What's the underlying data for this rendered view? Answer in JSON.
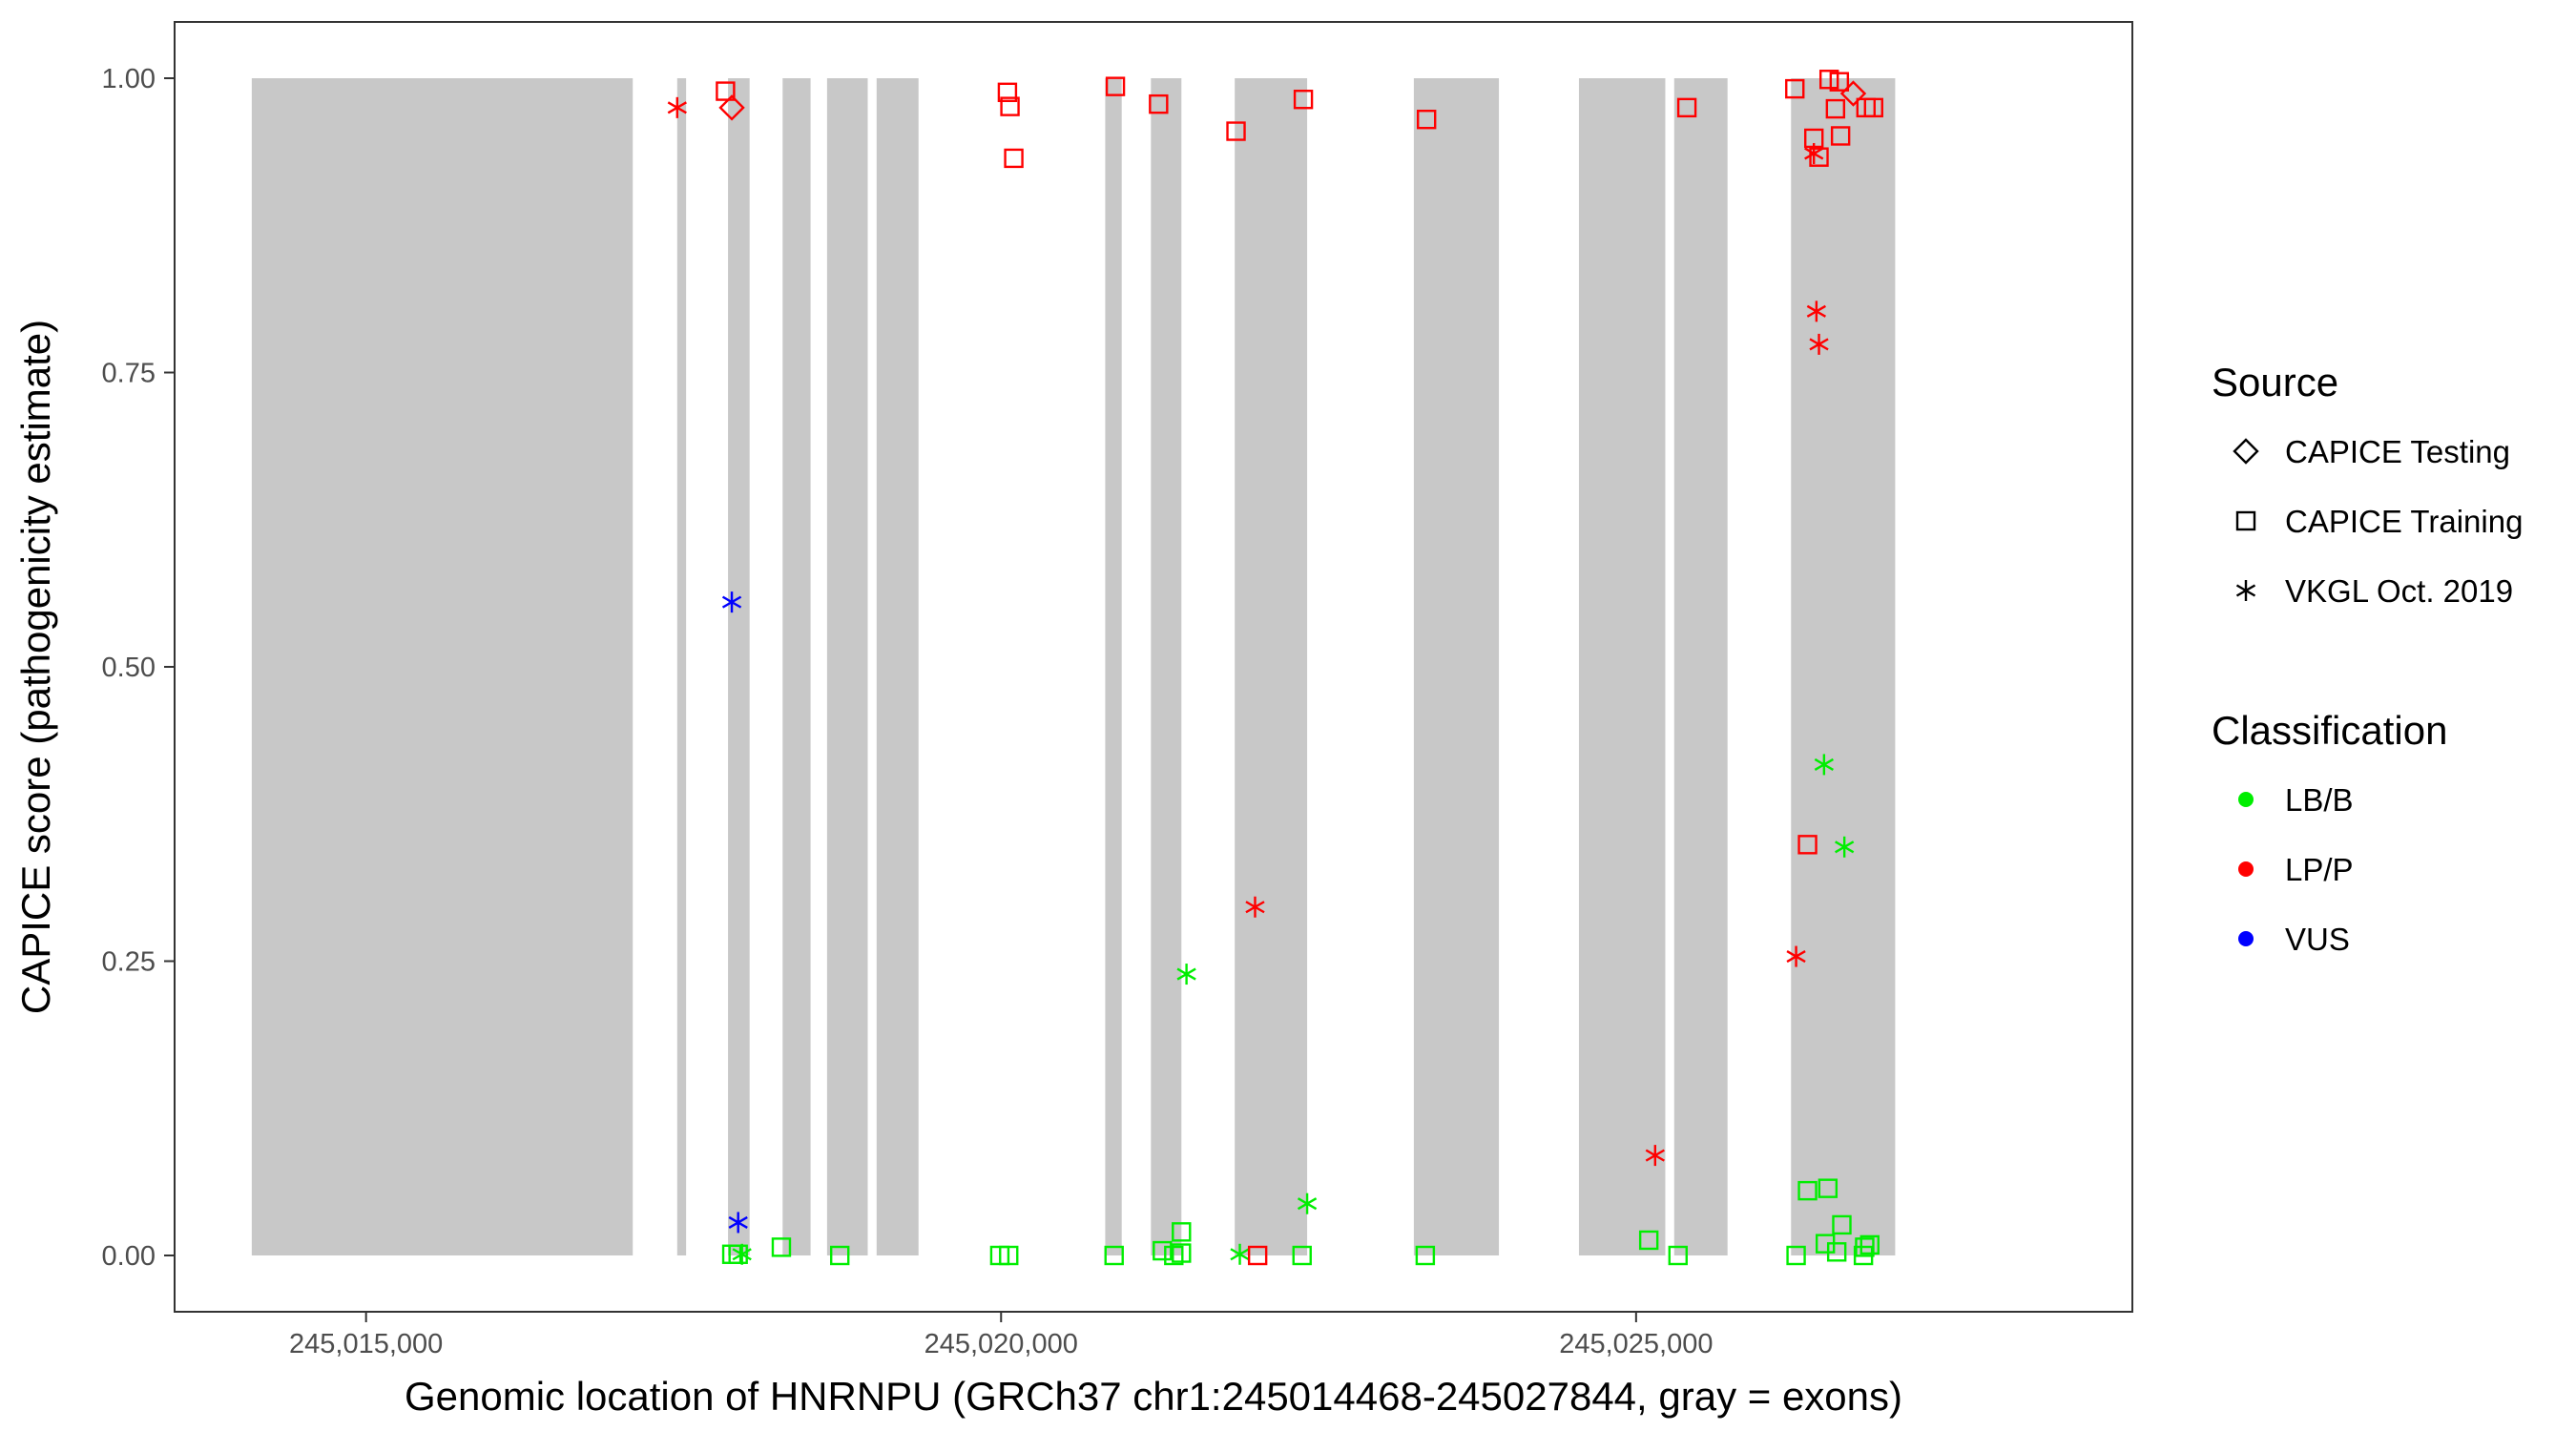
{
  "chart_data": {
    "type": "scatter",
    "xlabel": "Genomic location of HNRNPU (GRCh37 chr1:245014468-245027844, gray = exons)",
    "ylabel": "CAPICE score (pathogenicity estimate)",
    "xlim": [
      245013500,
      245028900
    ],
    "ylim": [
      -0.047,
      1.047
    ],
    "x_ticks": [
      {
        "value": 245015000,
        "label": "245,015,000"
      },
      {
        "value": 245020000,
        "label": "245,020,000"
      },
      {
        "value": 245025000,
        "label": "245,025,000"
      }
    ],
    "y_ticks": [
      {
        "value": 0,
        "label": "0.00"
      },
      {
        "value": 0.25,
        "label": "0.25"
      },
      {
        "value": 0.5,
        "label": "0.50"
      },
      {
        "value": 0.75,
        "label": "0.75"
      },
      {
        "value": 1,
        "label": "1.00"
      }
    ],
    "exons": [
      [
        245014100,
        245017100
      ],
      [
        245017450,
        245017520
      ],
      [
        245017850,
        245018020
      ],
      [
        245018280,
        245018500
      ],
      [
        245018630,
        245018950
      ],
      [
        245019020,
        245019350
      ],
      [
        245020820,
        245020950
      ],
      [
        245021180,
        245021420
      ],
      [
        245021840,
        245022410
      ],
      [
        245023250,
        245023920
      ],
      [
        245024550,
        245025230
      ],
      [
        245025300,
        245025720
      ],
      [
        245026220,
        245027040
      ]
    ],
    "exon_color": "#c8c8c8",
    "grid": false,
    "legend_position": "right",
    "colors": {
      "LB/B": "#00ee00",
      "LP/P": "#ff0000",
      "VUS": "#0000ff"
    },
    "legends": [
      {
        "title": "Source",
        "entries": [
          {
            "label": "CAPICE Testing",
            "shape": "diamond"
          },
          {
            "label": "CAPICE Training",
            "shape": "square"
          },
          {
            "label": "VKGL Oct. 2019",
            "shape": "asterisk"
          }
        ]
      },
      {
        "title": "Classification",
        "entries": [
          {
            "label": "LB/B",
            "color": "#00ee00"
          },
          {
            "label": "LP/P",
            "color": "#ff0000"
          },
          {
            "label": "VUS",
            "color": "#0000ff"
          }
        ]
      }
    ],
    "points": [
      {
        "x": 245017450,
        "y": 0.975,
        "shape": "asterisk",
        "class": "LP/P"
      },
      {
        "x": 245017830,
        "y": 0.989,
        "shape": "square",
        "class": "LP/P"
      },
      {
        "x": 245017880,
        "y": 0.975,
        "shape": "diamond",
        "class": "LP/P"
      },
      {
        "x": 245020050,
        "y": 0.988,
        "shape": "square",
        "class": "LP/P"
      },
      {
        "x": 245020070,
        "y": 0.976,
        "shape": "square",
        "class": "LP/P"
      },
      {
        "x": 245020100,
        "y": 0.932,
        "shape": "square",
        "class": "LP/P"
      },
      {
        "x": 245020900,
        "y": 0.993,
        "shape": "square",
        "class": "LP/P"
      },
      {
        "x": 245021240,
        "y": 0.978,
        "shape": "square",
        "class": "LP/P"
      },
      {
        "x": 245021850,
        "y": 0.955,
        "shape": "square",
        "class": "LP/P"
      },
      {
        "x": 245022380,
        "y": 0.982,
        "shape": "square",
        "class": "LP/P"
      },
      {
        "x": 245023350,
        "y": 0.965,
        "shape": "square",
        "class": "LP/P"
      },
      {
        "x": 245025400,
        "y": 0.975,
        "shape": "square",
        "class": "LP/P"
      },
      {
        "x": 245026250,
        "y": 0.991,
        "shape": "square",
        "class": "LP/P"
      },
      {
        "x": 245026400,
        "y": 0.949,
        "shape": "square",
        "class": "LP/P"
      },
      {
        "x": 245026440,
        "y": 0.933,
        "shape": "square",
        "class": "LP/P"
      },
      {
        "x": 245026520,
        "y": 0.999,
        "shape": "square",
        "class": "LP/P"
      },
      {
        "x": 245026570,
        "y": 0.974,
        "shape": "square",
        "class": "LP/P"
      },
      {
        "x": 245026600,
        "y": 0.997,
        "shape": "square",
        "class": "LP/P"
      },
      {
        "x": 245026610,
        "y": 0.951,
        "shape": "square",
        "class": "LP/P"
      },
      {
        "x": 245026710,
        "y": 0.987,
        "shape": "diamond",
        "class": "LP/P"
      },
      {
        "x": 245026810,
        "y": 0.975,
        "shape": "square",
        "class": "LP/P"
      },
      {
        "x": 245026870,
        "y": 0.975,
        "shape": "square",
        "class": "LP/P"
      },
      {
        "x": 245026400,
        "y": 0.936,
        "shape": "asterisk",
        "class": "LP/P"
      },
      {
        "x": 245026420,
        "y": 0.802,
        "shape": "asterisk",
        "class": "LP/P"
      },
      {
        "x": 245026440,
        "y": 0.774,
        "shape": "asterisk",
        "class": "LP/P"
      },
      {
        "x": 245017880,
        "y": 0.555,
        "shape": "asterisk",
        "class": "VUS"
      },
      {
        "x": 245017930,
        "y": 0.028,
        "shape": "asterisk",
        "class": "VUS"
      },
      {
        "x": 245026480,
        "y": 0.417,
        "shape": "asterisk",
        "class": "LB/B"
      },
      {
        "x": 245026640,
        "y": 0.347,
        "shape": "asterisk",
        "class": "LB/B"
      },
      {
        "x": 245026350,
        "y": 0.349,
        "shape": "square",
        "class": "LP/P"
      },
      {
        "x": 245022000,
        "y": 0.296,
        "shape": "asterisk",
        "class": "LP/P"
      },
      {
        "x": 245026260,
        "y": 0.254,
        "shape": "asterisk",
        "class": "LP/P"
      },
      {
        "x": 245021460,
        "y": 0.239,
        "shape": "asterisk",
        "class": "LB/B"
      },
      {
        "x": 245025150,
        "y": 0.085,
        "shape": "asterisk",
        "class": "LP/P"
      },
      {
        "x": 245022410,
        "y": 0.044,
        "shape": "asterisk",
        "class": "LB/B"
      },
      {
        "x": 245025100,
        "y": 0.013,
        "shape": "square",
        "class": "LB/B"
      },
      {
        "x": 245026350,
        "y": 0.055,
        "shape": "square",
        "class": "LB/B"
      },
      {
        "x": 245026510,
        "y": 0.057,
        "shape": "square",
        "class": "LB/B"
      },
      {
        "x": 245026620,
        "y": 0.026,
        "shape": "square",
        "class": "LB/B"
      },
      {
        "x": 245021420,
        "y": 0.02,
        "shape": "square",
        "class": "LB/B"
      },
      {
        "x": 245018270,
        "y": 0.007,
        "shape": "square",
        "class": "LB/B"
      },
      {
        "x": 245026490,
        "y": 0.01,
        "shape": "square",
        "class": "LB/B"
      },
      {
        "x": 245026800,
        "y": 0.007,
        "shape": "square",
        "class": "LB/B"
      },
      {
        "x": 245026840,
        "y": 0.009,
        "shape": "square",
        "class": "LB/B"
      },
      {
        "x": 245017880,
        "y": 0.001,
        "shape": "square",
        "class": "LB/B"
      },
      {
        "x": 245017930,
        "y": 0.001,
        "shape": "square",
        "class": "LB/B"
      },
      {
        "x": 245017960,
        "y": 0.001,
        "shape": "asterisk",
        "class": "LB/B"
      },
      {
        "x": 245018730,
        "y": 0.0,
        "shape": "square",
        "class": "LB/B"
      },
      {
        "x": 245019990,
        "y": 0.0,
        "shape": "square",
        "class": "LB/B"
      },
      {
        "x": 245020060,
        "y": 0.0,
        "shape": "square",
        "class": "LB/B"
      },
      {
        "x": 245020890,
        "y": 0.0,
        "shape": "square",
        "class": "LB/B"
      },
      {
        "x": 245021270,
        "y": 0.004,
        "shape": "square",
        "class": "LB/B"
      },
      {
        "x": 245021360,
        "y": 0.0,
        "shape": "square",
        "class": "LB/B"
      },
      {
        "x": 245021420,
        "y": 0.002,
        "shape": "square",
        "class": "LB/B"
      },
      {
        "x": 245021880,
        "y": 0.001,
        "shape": "asterisk",
        "class": "LB/B"
      },
      {
        "x": 245022020,
        "y": 0.0,
        "shape": "square",
        "class": "LP/P"
      },
      {
        "x": 245022370,
        "y": 0.0,
        "shape": "square",
        "class": "LB/B"
      },
      {
        "x": 245023340,
        "y": 0.0,
        "shape": "square",
        "class": "LB/B"
      },
      {
        "x": 245025330,
        "y": 0.0,
        "shape": "square",
        "class": "LB/B"
      },
      {
        "x": 245026260,
        "y": 0.0,
        "shape": "square",
        "class": "LB/B"
      },
      {
        "x": 245026580,
        "y": 0.003,
        "shape": "square",
        "class": "LB/B"
      },
      {
        "x": 245026790,
        "y": 0.0,
        "shape": "square",
        "class": "LB/B"
      }
    ]
  }
}
